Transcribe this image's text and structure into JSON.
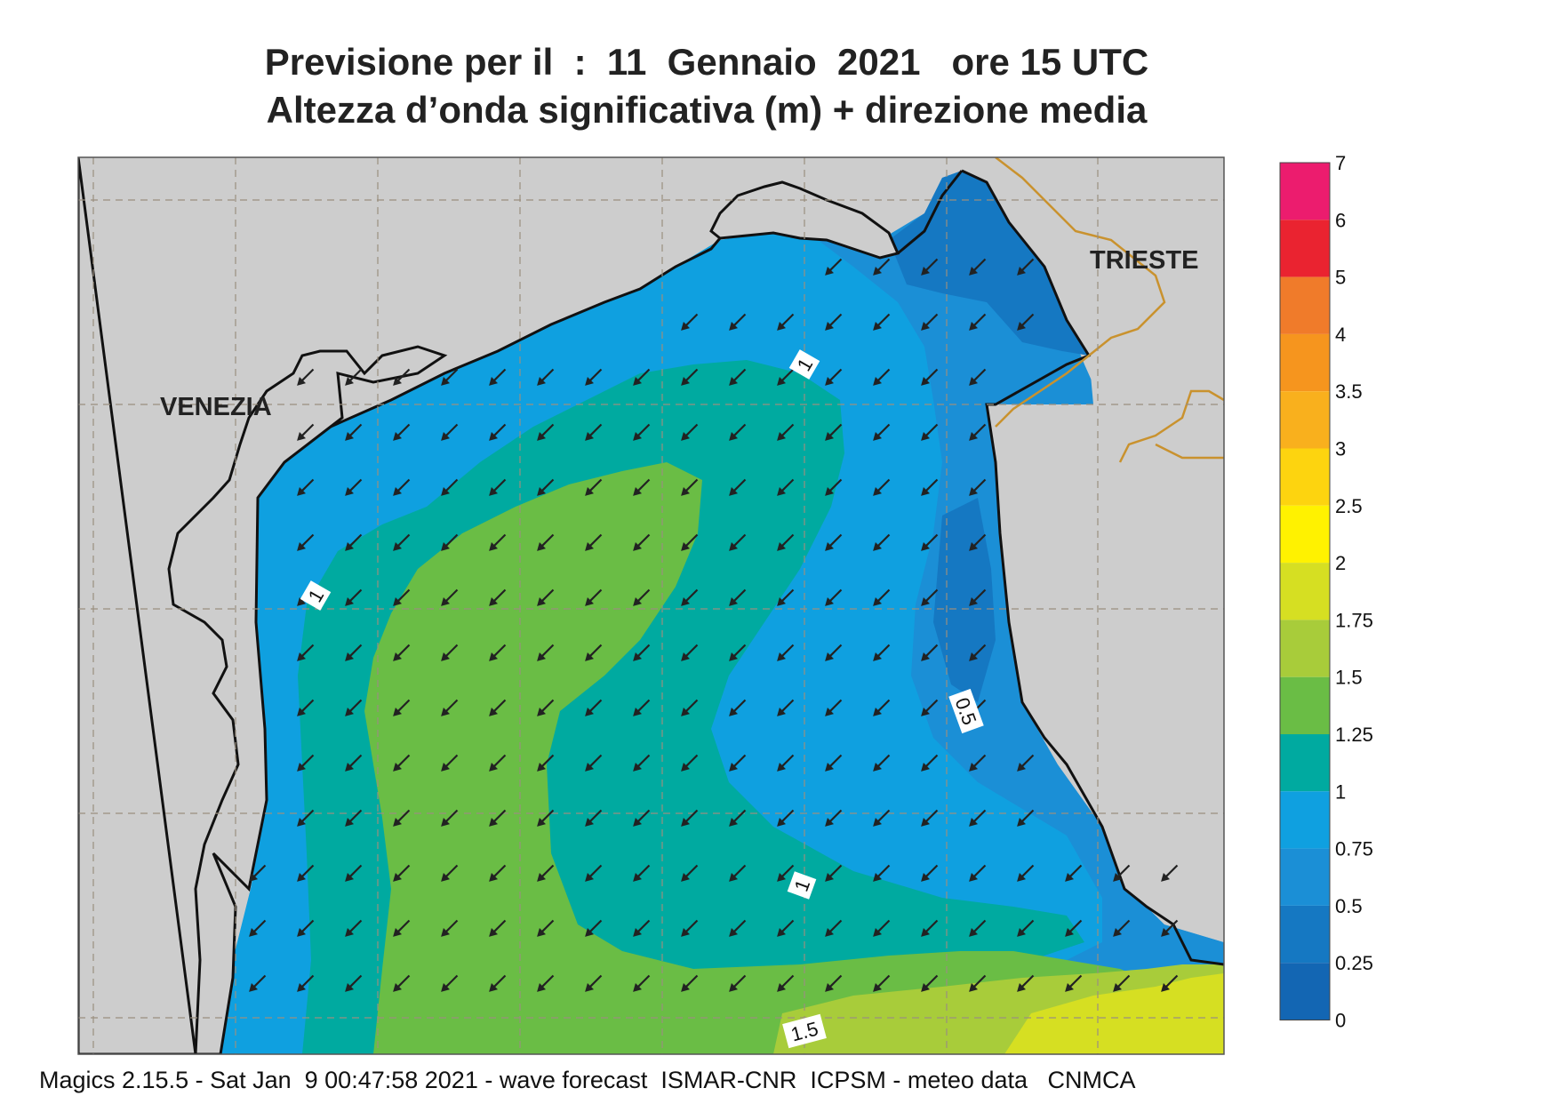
{
  "title": {
    "line1": "Previsione per il  :  11  Gennaio  2021   ore 15 UTC",
    "line2": "Altezza d’onda significativa (m) + direzione media"
  },
  "map": {
    "cities": [
      {
        "name": "VENEZIA"
      },
      {
        "name": "TRIESTE"
      }
    ],
    "contour_labels": [
      "1",
      "1",
      "1",
      "0.5",
      "1.5"
    ],
    "arrow_direction": "south-west",
    "colors": {
      "land": "#cdcdcd",
      "grid": "#9a8f7f",
      "border": "#c9922e",
      "coast": "#111111"
    }
  },
  "legend": {
    "levels": [
      {
        "label": "7",
        "color": null
      },
      {
        "label": "6",
        "color": "#ec1c6e"
      },
      {
        "label": "5",
        "color": "#ea2330"
      },
      {
        "label": "4",
        "color": "#f07b2a"
      },
      {
        "label": "3.5",
        "color": "#f6951e"
      },
      {
        "label": "3",
        "color": "#f9b01d"
      },
      {
        "label": "2.5",
        "color": "#fdd40f"
      },
      {
        "label": "2",
        "color": "#fff200"
      },
      {
        "label": "1.75",
        "color": "#d6df22"
      },
      {
        "label": "1.5",
        "color": "#a8cc3a"
      },
      {
        "label": "1.25",
        "color": "#6abd45"
      },
      {
        "label": "1",
        "color": "#00aaa0"
      },
      {
        "label": "0.75",
        "color": "#0fa0e0"
      },
      {
        "label": "0.5",
        "color": "#1b8fd6"
      },
      {
        "label": "0.25",
        "color": "#1578c2"
      },
      {
        "label": "0",
        "color": "#1366b3"
      }
    ]
  },
  "footer": "Magics 2.15.5 - Sat Jan  9 00:47:58 2021 - wave forecast  ISMAR-CNR  ICPSM - meteo data   CNMCA"
}
